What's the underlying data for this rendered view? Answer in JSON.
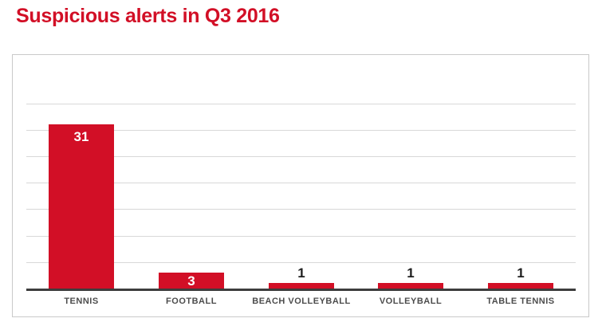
{
  "page": {
    "title": "Suspicious alerts in Q3 2016"
  },
  "colors": {
    "title_red": "#d20f26",
    "bar_red": "#d20f26",
    "gridline": "#d8d8d8",
    "axis": "#3d3d3d",
    "chart_border": "#c9c9c9",
    "category_label": "#4c4c4c",
    "value_label_inside": "#ffffff",
    "value_label_above": "#1e1e1e",
    "background": "#ffffff"
  },
  "chart_data": {
    "type": "bar",
    "title": "Suspicious alerts in Q3 2016",
    "categories": [
      "TENNIS",
      "FOOTBALL",
      "BEACH VOLLEYBALL",
      "VOLLEYBALL",
      "TABLE TENNIS"
    ],
    "values": [
      31,
      3,
      1,
      1,
      1
    ],
    "xlabel": "",
    "ylabel": "",
    "ylim": [
      0,
      35.5
    ],
    "gridline_values": [
      5,
      10,
      15,
      20,
      25,
      30,
      35
    ],
    "ytick_labels_shown": false,
    "grid": true,
    "legend": false,
    "value_labels_shown": true
  }
}
